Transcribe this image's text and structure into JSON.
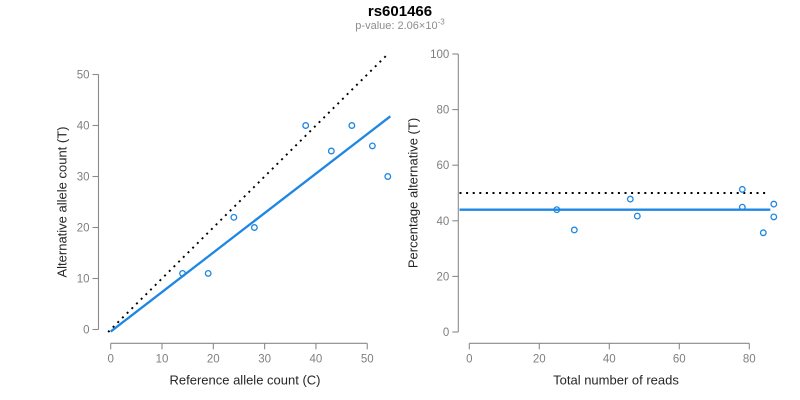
{
  "title": "rs601466",
  "subtitle": {
    "prefix": "p-value: 2.06×10",
    "exponent": "-3"
  },
  "colors": {
    "accent": "#1E87E4",
    "reference_line": "#000000",
    "axis_line": "#8A8A8A",
    "tick_label": "#7F7F7F",
    "axis_title": "#262626",
    "title": "#000000",
    "subtitle": "#8C8C8C"
  },
  "chart_data": [
    {
      "type": "scatter",
      "panel": "left",
      "xlabel": "Reference allele count (C)",
      "ylabel": "Alternative allele count (T)",
      "xlim": [
        0,
        54
      ],
      "ylim": [
        0,
        54
      ],
      "xticks": [
        0,
        10,
        20,
        30,
        40,
        50
      ],
      "yticks": [
        0,
        10,
        20,
        30,
        40,
        50
      ],
      "grid": false,
      "legend": "none",
      "points": [
        [
          14,
          11
        ],
        [
          19,
          11
        ],
        [
          24,
          22
        ],
        [
          28,
          20
        ],
        [
          38,
          40
        ],
        [
          43,
          35
        ],
        [
          47,
          40
        ],
        [
          51,
          36
        ],
        [
          54,
          30
        ]
      ],
      "lines": [
        {
          "name": "identity-line",
          "style": "dotted",
          "color": "reference",
          "x": [
            -0.5,
            53.8
          ],
          "y": [
            -0.5,
            53.8
          ]
        },
        {
          "name": "regression-line",
          "style": "solid",
          "color": "accent",
          "x": [
            0,
            54.5
          ],
          "y": [
            -0.4,
            41.8
          ]
        }
      ]
    },
    {
      "type": "scatter",
      "panel": "right",
      "xlabel": "Total number of reads",
      "ylabel": "Percentage alternative (T)",
      "xlim": [
        0,
        88
      ],
      "ylim": [
        0,
        100
      ],
      "xticks": [
        0,
        20,
        40,
        60,
        80
      ],
      "yticks": [
        0,
        20,
        40,
        60,
        80,
        100
      ],
      "grid": false,
      "legend": "none",
      "points": [
        [
          25,
          44
        ],
        [
          30,
          36.7
        ],
        [
          46,
          47.8
        ],
        [
          48,
          41.7
        ],
        [
          78,
          51.3
        ],
        [
          78,
          44.9
        ],
        [
          84,
          35.7
        ],
        [
          87,
          46
        ],
        [
          87,
          41.4
        ]
      ],
      "lines": [
        {
          "name": "expected-50-percent-line",
          "style": "dotted",
          "color": "reference",
          "x": [
            -2.8,
            85.1
          ],
          "y": [
            50,
            50
          ]
        },
        {
          "name": "mean-percentage-line",
          "style": "solid",
          "color": "accent",
          "x": [
            -2.8,
            86
          ],
          "y": [
            44,
            44
          ]
        }
      ]
    }
  ]
}
